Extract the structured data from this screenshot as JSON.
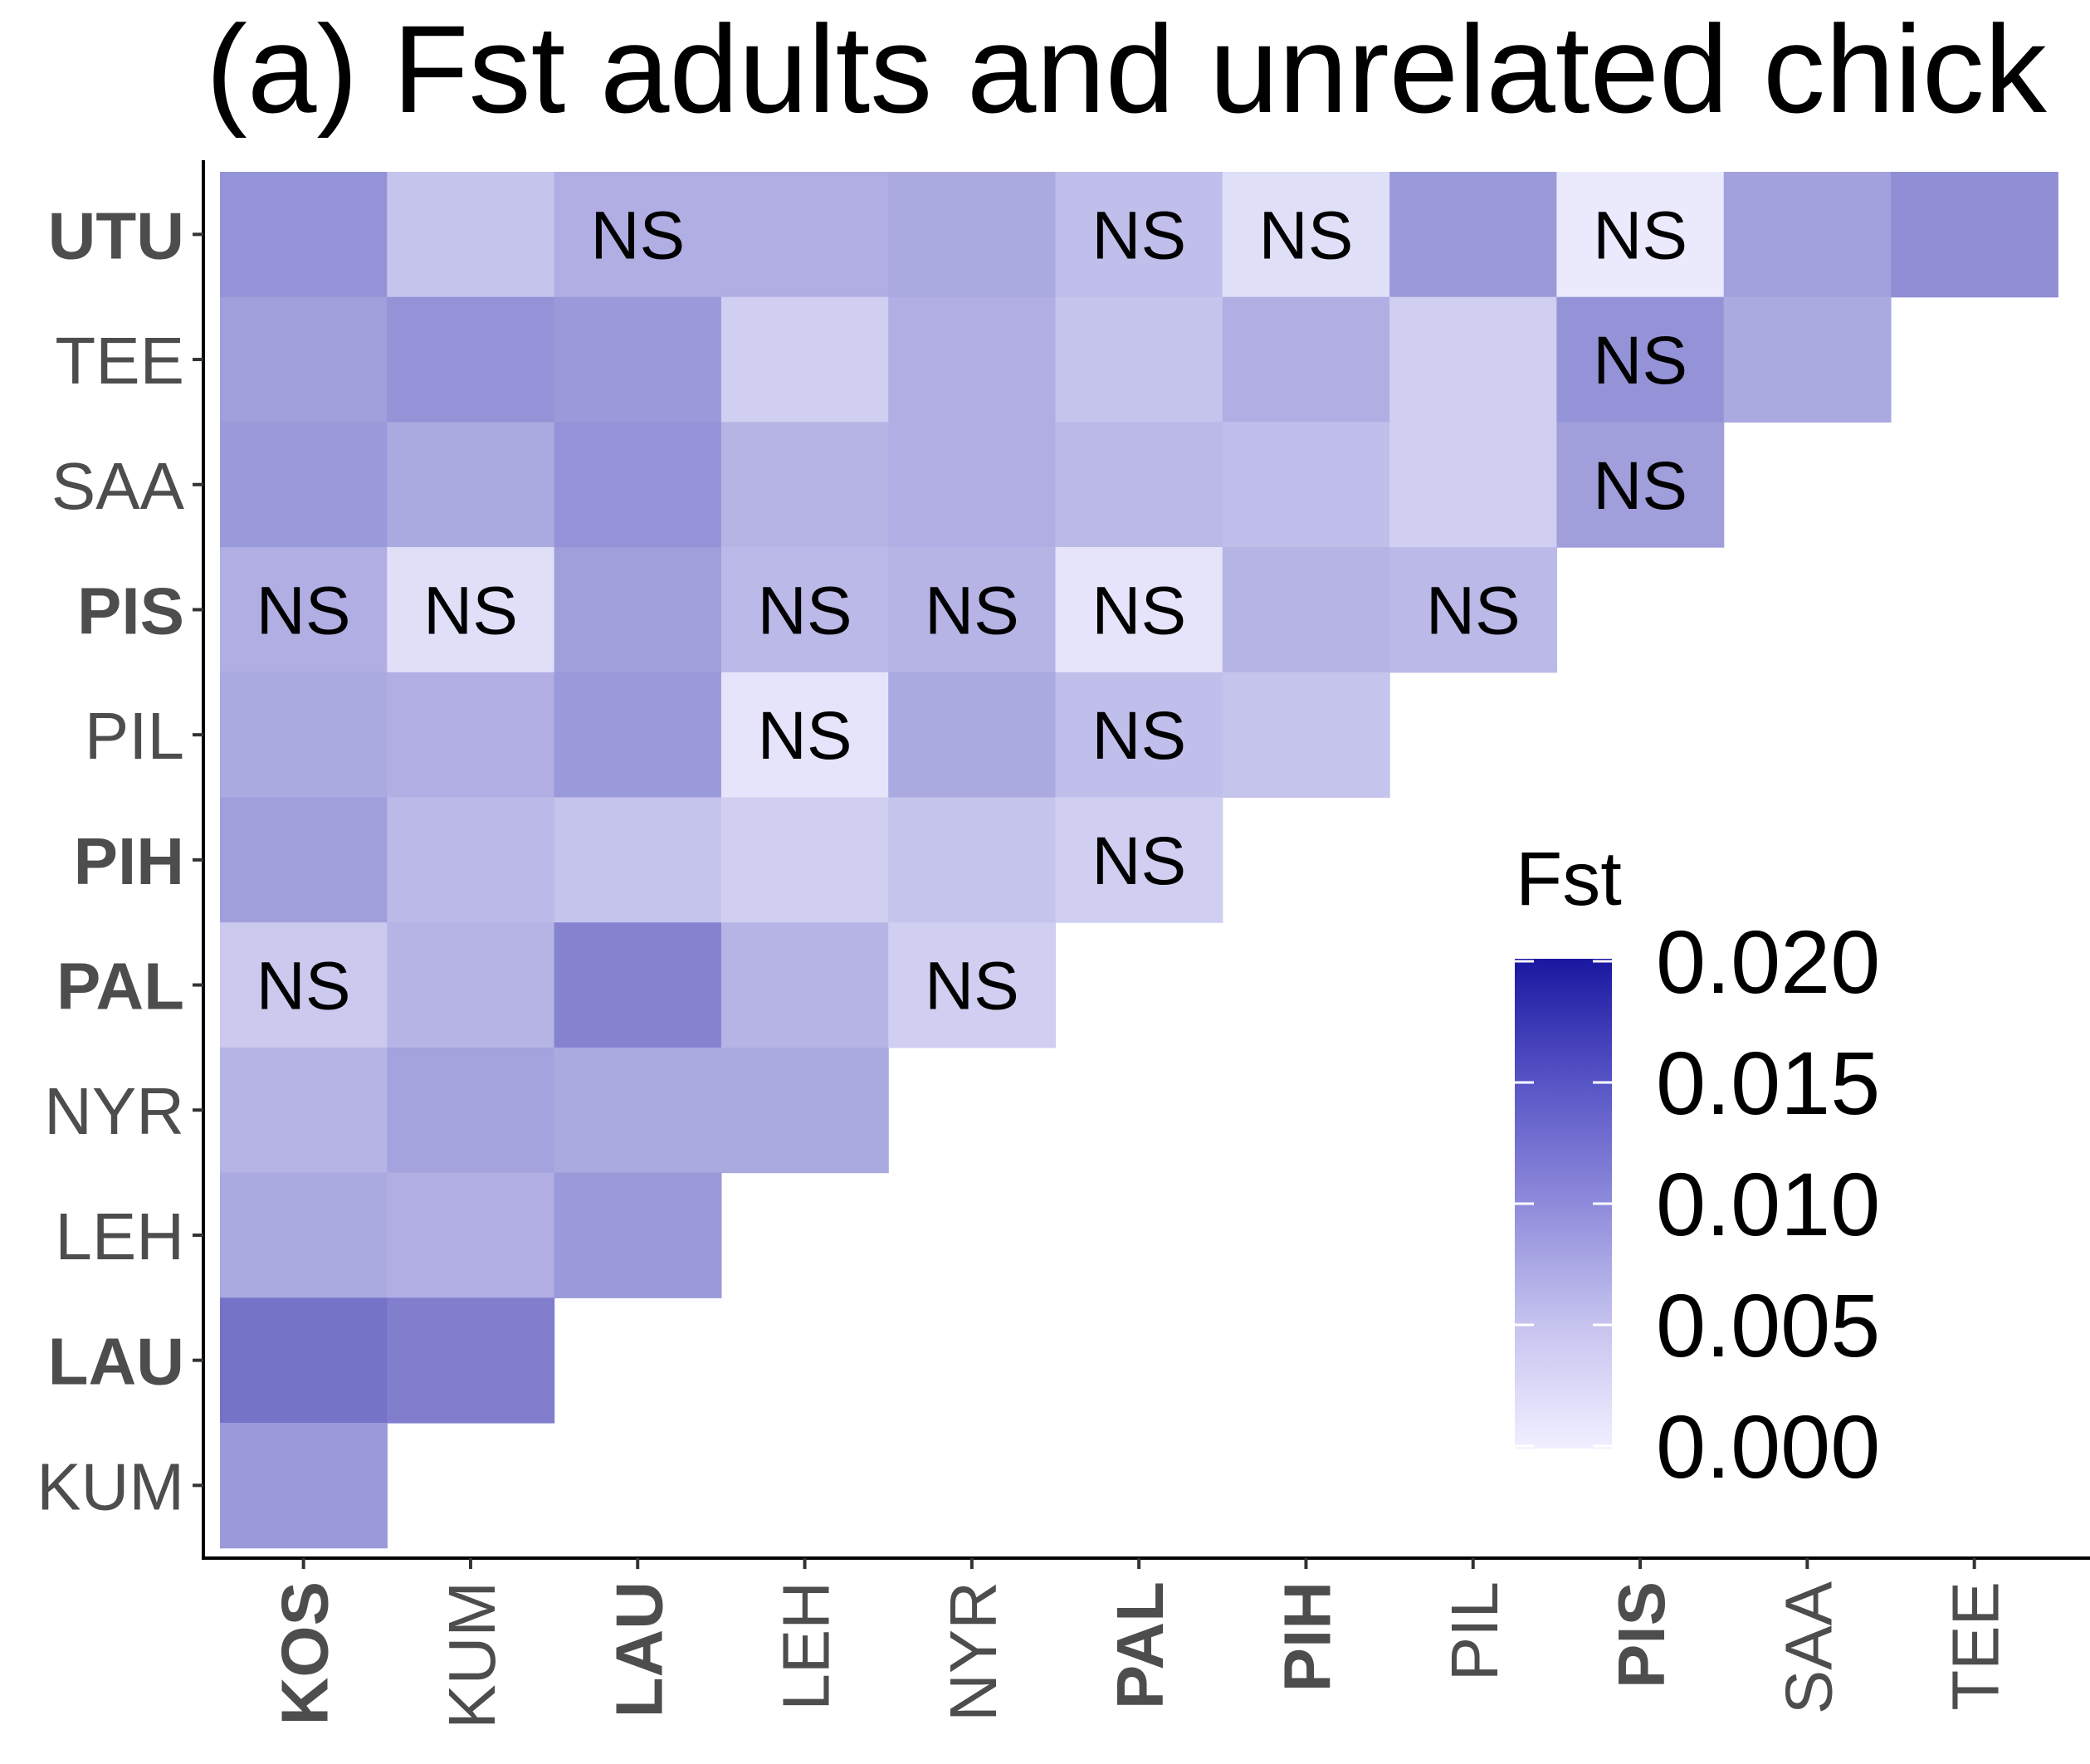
{
  "chart_data": {
    "type": "heatmap",
    "title": "(a) Fst adults and unrelated chick",
    "x_categories": [
      "KOS",
      "KUM",
      "LAU",
      "LEH",
      "NYR",
      "PAL",
      "PIH",
      "PIL",
      "PIS",
      "SAA",
      "TEE"
    ],
    "y_categories": [
      "KUM",
      "LAU",
      "LEH",
      "NYR",
      "PAL",
      "PIH",
      "PIL",
      "PIS",
      "SAA",
      "TEE",
      "UTU"
    ],
    "bold_labels": [
      "KOS",
      "LAU",
      "PAL",
      "PIH",
      "PIS",
      "UTU"
    ],
    "rows": [
      {
        "y": "UTU",
        "values": [
          0.0085,
          0.004,
          0.006,
          0.006,
          0.0065,
          0.0045,
          0.0015,
          0.008,
          0.0005,
          0.0072,
          0.009
        ],
        "ns": [
          false,
          false,
          true,
          false,
          false,
          true,
          true,
          false,
          true,
          false,
          false
        ]
      },
      {
        "y": "TEE",
        "values": [
          0.0075,
          0.0085,
          0.008,
          0.003,
          0.006,
          0.004,
          0.006,
          0.003,
          0.0085,
          0.0065
        ],
        "ns": [
          false,
          false,
          false,
          false,
          false,
          false,
          false,
          false,
          true,
          false
        ]
      },
      {
        "y": "SAA",
        "values": [
          0.008,
          0.0065,
          0.0085,
          0.0055,
          0.006,
          0.005,
          0.0045,
          0.003,
          0.0075
        ],
        "ns": [
          false,
          false,
          false,
          false,
          false,
          false,
          false,
          false,
          true
        ]
      },
      {
        "y": "PIS",
        "values": [
          0.006,
          0.0015,
          0.0075,
          0.005,
          0.0055,
          0.001,
          0.0055,
          0.005
        ],
        "ns": [
          true,
          true,
          false,
          true,
          true,
          true,
          false,
          true
        ]
      },
      {
        "y": "PIL",
        "values": [
          0.0065,
          0.006,
          0.008,
          0.001,
          0.0065,
          0.0045,
          0.004
        ],
        "ns": [
          false,
          false,
          false,
          true,
          false,
          true,
          false
        ]
      },
      {
        "y": "PIH",
        "values": [
          0.0075,
          0.005,
          0.004,
          0.003,
          0.004,
          0.003
        ],
        "ns": [
          false,
          false,
          false,
          false,
          false,
          true
        ]
      },
      {
        "y": "PAL",
        "values": [
          0.0035,
          0.0055,
          0.01,
          0.0055,
          0.003
        ],
        "ns": [
          true,
          false,
          false,
          false,
          true
        ]
      },
      {
        "y": "NYR",
        "values": [
          0.0055,
          0.007,
          0.0065,
          0.0065
        ],
        "ns": [
          false,
          false,
          false,
          false
        ]
      },
      {
        "y": "LEH",
        "values": [
          0.0065,
          0.006,
          0.008
        ],
        "ns": [
          false,
          false,
          false
        ]
      },
      {
        "y": "LAU",
        "values": [
          0.0115,
          0.0105
        ],
        "ns": [
          false,
          false
        ]
      },
      {
        "y": "KUM",
        "values": [
          0.008
        ],
        "ns": [
          false
        ]
      }
    ],
    "ns_label": "NS",
    "legend": {
      "title": "Fst",
      "ticks": [
        "0.020",
        "0.015",
        "0.010",
        "0.005",
        "0.000"
      ],
      "range": [
        0.0,
        0.02
      ],
      "color_low": "#f0efff",
      "color_high": "#1a17a0",
      "placement": "right, inside plot"
    },
    "grid": false
  }
}
